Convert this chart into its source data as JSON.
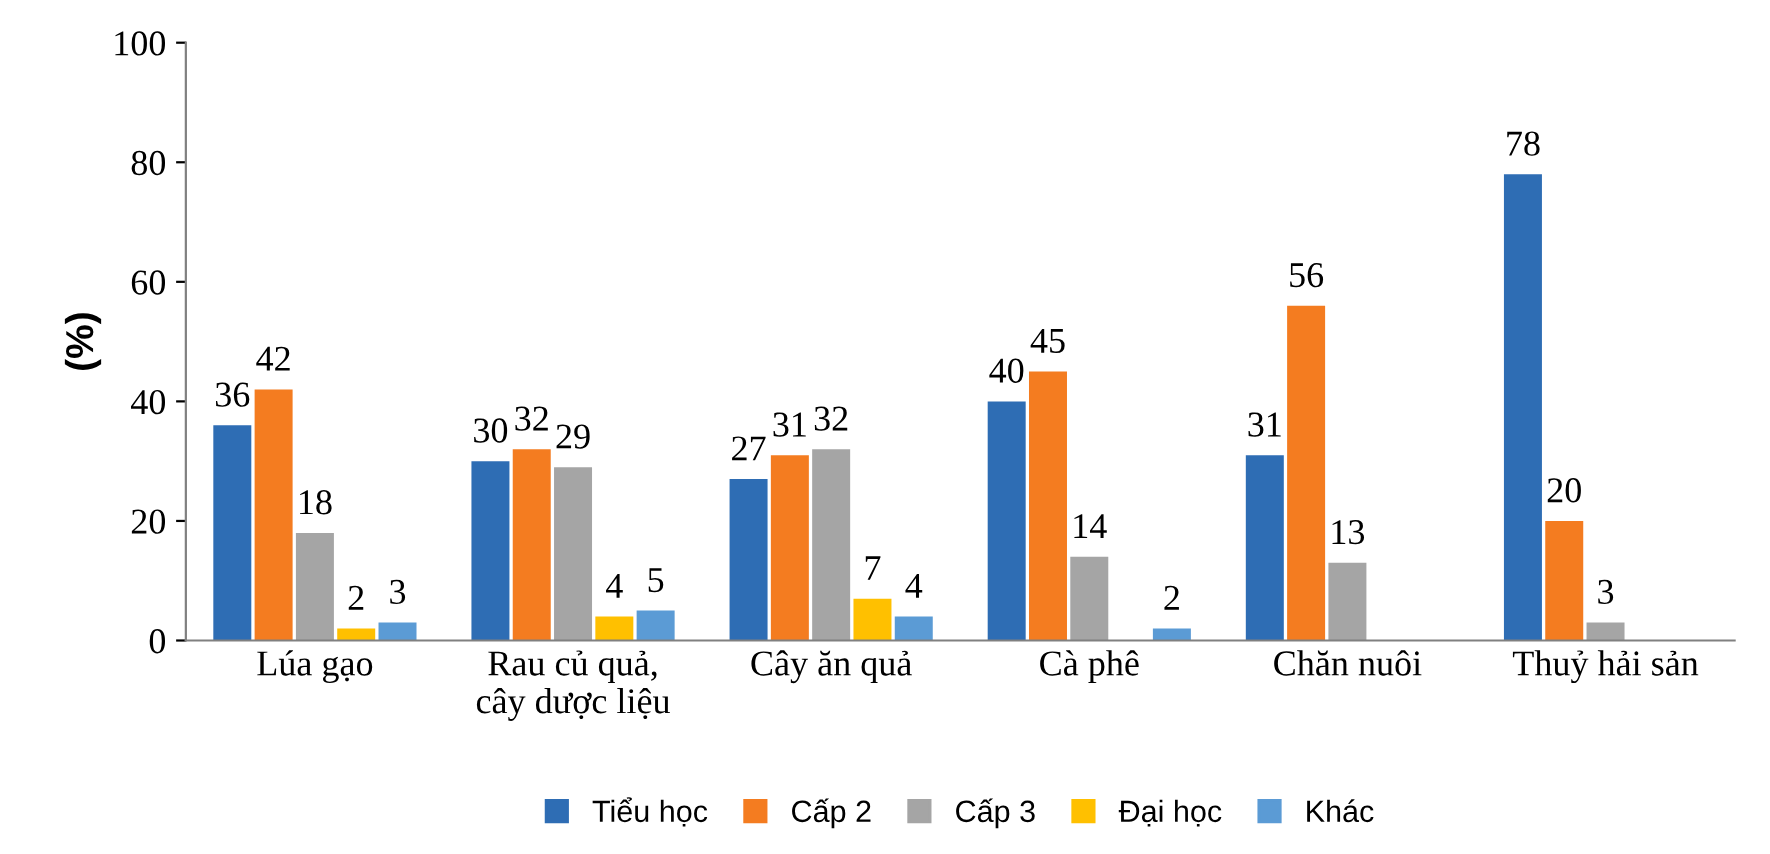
{
  "chart_data": {
    "type": "bar",
    "ylabel": "(%)",
    "categories": [
      "Lúa gạo",
      "Rau củ quả,\ncây dược liệu",
      "Cây ăn quả",
      "Cà phê",
      "Chăn nuôi",
      "Thuỷ hải sản"
    ],
    "series": [
      {
        "name": "Tiểu học",
        "color": "#2e6db4",
        "values": [
          36,
          30,
          27,
          40,
          31,
          78
        ]
      },
      {
        "name": "Cấp 2",
        "color": "#f47c20",
        "values": [
          42,
          32,
          31,
          45,
          56,
          20
        ]
      },
      {
        "name": "Cấp 3",
        "color": "#a5a5a5",
        "values": [
          18,
          29,
          32,
          14,
          13,
          3
        ]
      },
      {
        "name": "Đại học",
        "color": "#ffc000",
        "values": [
          2,
          4,
          7,
          null,
          null,
          null
        ]
      },
      {
        "name": "Khác",
        "color": "#5b9bd5",
        "values": [
          3,
          5,
          4,
          2,
          null,
          null
        ]
      }
    ],
    "ylim": [
      0,
      100
    ],
    "yticks": [
      0,
      20,
      40,
      60,
      80,
      100
    ],
    "grid": false,
    "legend": "bottom",
    "data_labels": true
  }
}
